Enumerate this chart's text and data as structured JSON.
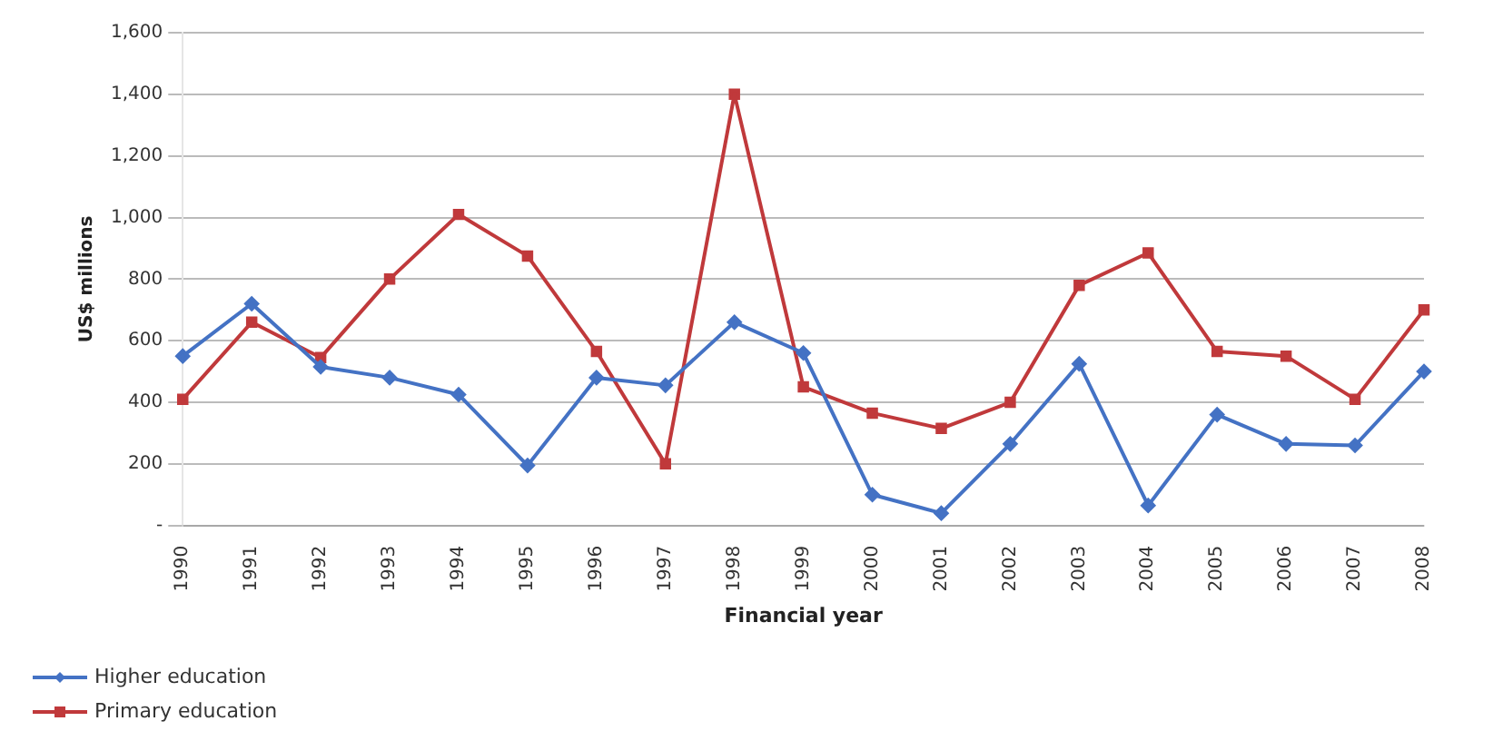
{
  "chart_data": {
    "type": "line",
    "xlabel": "Financial year",
    "ylabel": "US$ millions",
    "categories": [
      "1990",
      "1991",
      "1992",
      "1993",
      "1994",
      "1995",
      "1996",
      "1997",
      "1998",
      "1999",
      "2000",
      "2001",
      "2002",
      "2003",
      "2004",
      "2005",
      "2006",
      "2007",
      "2008"
    ],
    "series": [
      {
        "name": "Higher education",
        "color": "#4472c4",
        "marker": "diamond",
        "values": [
          550,
          720,
          515,
          480,
          425,
          195,
          480,
          455,
          660,
          560,
          100,
          40,
          265,
          525,
          65,
          360,
          265,
          260,
          500
        ]
      },
      {
        "name": "Primary education",
        "color": "#c0393b",
        "marker": "square",
        "values": [
          410,
          660,
          545,
          800,
          1010,
          875,
          565,
          200,
          1400,
          450,
          365,
          315,
          400,
          780,
          885,
          565,
          550,
          410,
          700
        ]
      }
    ],
    "ylim": [
      0,
      1600
    ],
    "yticks": [
      {
        "value": 0,
        "label": "-"
      },
      200,
      400,
      600,
      800,
      {
        "value": 1000,
        "label": "1,000"
      },
      {
        "value": 1200,
        "label": "1,200"
      },
      {
        "value": 1400,
        "label": "1,400"
      },
      {
        "value": 1600,
        "label": "1,600"
      }
    ],
    "grid": "y",
    "legend": "bottom left"
  }
}
